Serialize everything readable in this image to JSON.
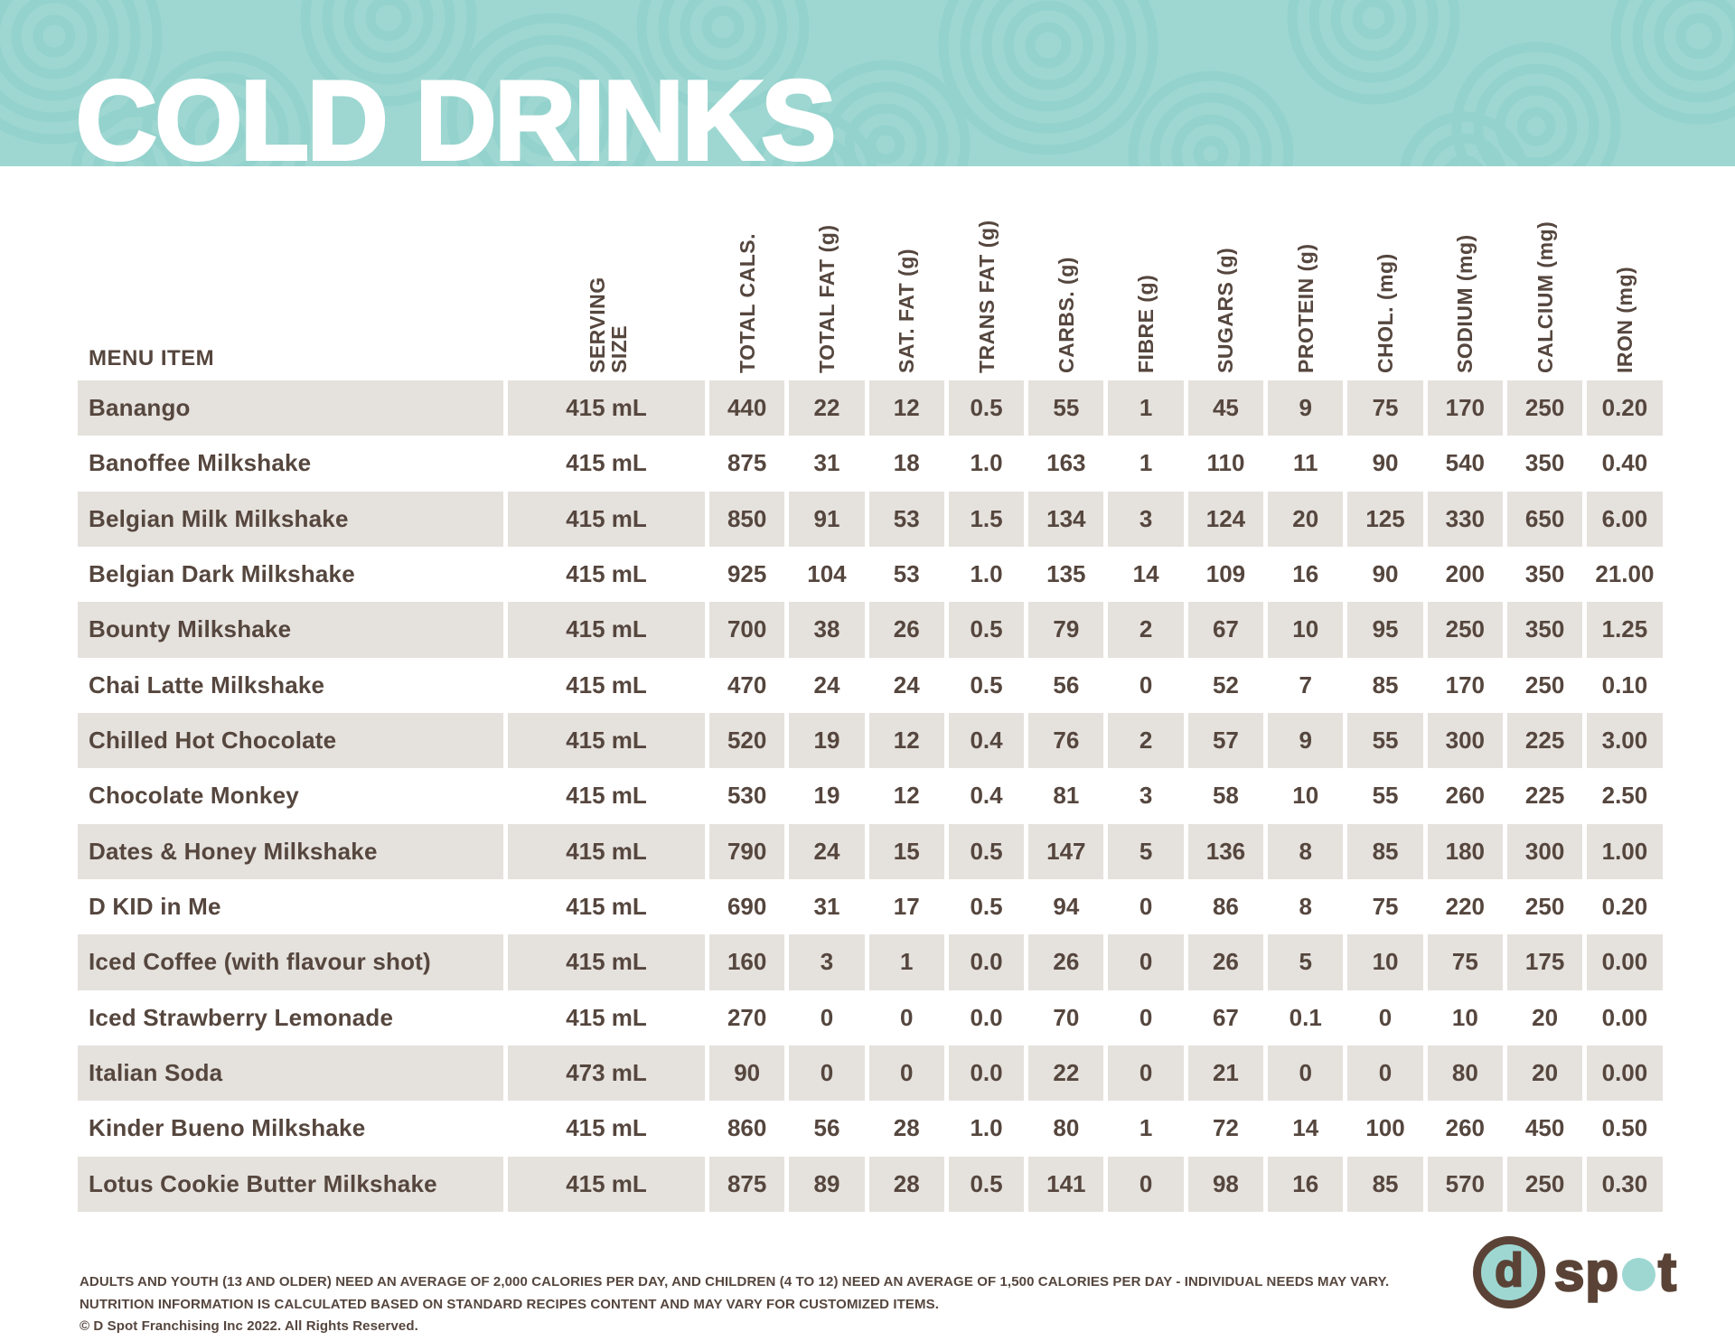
{
  "palette": {
    "teal": "#9ed7d2",
    "teal_pattern": "#8ccfc9",
    "text_brown": "#55463e",
    "logo_brown": "#5a4336",
    "row_gray": "#e5e1dd",
    "white": "#ffffff"
  },
  "header": {
    "title": "COLD DRINKS"
  },
  "table": {
    "menu_item_header": "MENU ITEM",
    "columns": [
      {
        "id": "serving-size",
        "label": "SERVING SIZE",
        "lines": [
          "SERVING",
          "SIZE"
        ]
      },
      {
        "id": "total-cals",
        "label": "TOTAL CALS.",
        "lines": [
          "TOTAL CALS."
        ]
      },
      {
        "id": "total-fat",
        "label": "TOTAL FAT (g)",
        "lines": [
          "TOTAL FAT (g)"
        ]
      },
      {
        "id": "sat-fat",
        "label": "SAT. FAT (g)",
        "lines": [
          "SAT. FAT (g)"
        ]
      },
      {
        "id": "trans-fat",
        "label": "TRANS FAT (g)",
        "lines": [
          "TRANS FAT (g)"
        ]
      },
      {
        "id": "carbs",
        "label": "CARBS. (g)",
        "lines": [
          "CARBS. (g)"
        ]
      },
      {
        "id": "fibre",
        "label": "FIBRE (g)",
        "lines": [
          "FIBRE (g)"
        ]
      },
      {
        "id": "sugars",
        "label": "SUGARS (g)",
        "lines": [
          "SUGARS (g)"
        ]
      },
      {
        "id": "protein",
        "label": "PROTEIN (g)",
        "lines": [
          "PROTEIN (g)"
        ]
      },
      {
        "id": "chol",
        "label": "CHOL. (mg)",
        "lines": [
          "CHOL. (mg)"
        ]
      },
      {
        "id": "sodium",
        "label": "SODIUM (mg)",
        "lines": [
          "SODIUM (mg)"
        ]
      },
      {
        "id": "calcium",
        "label": "CALCIUM (mg)",
        "lines": [
          "CALCIUM (mg)"
        ]
      },
      {
        "id": "iron",
        "label": "IRON (mg)",
        "lines": [
          "IRON (mg)"
        ]
      }
    ],
    "rows": [
      {
        "name": "Banango",
        "values": [
          "415 mL",
          "440",
          "22",
          "12",
          "0.5",
          "55",
          "1",
          "45",
          "9",
          "75",
          "170",
          "250",
          "0.20"
        ]
      },
      {
        "name": "Banoffee Milkshake",
        "values": [
          "415 mL",
          "875",
          "31",
          "18",
          "1.0",
          "163",
          "1",
          "110",
          "11",
          "90",
          "540",
          "350",
          "0.40"
        ]
      },
      {
        "name": "Belgian Milk Milkshake",
        "values": [
          "415 mL",
          "850",
          "91",
          "53",
          "1.5",
          "134",
          "3",
          "124",
          "20",
          "125",
          "330",
          "650",
          "6.00"
        ]
      },
      {
        "name": "Belgian Dark Milkshake",
        "values": [
          "415 mL",
          "925",
          "104",
          "53",
          "1.0",
          "135",
          "14",
          "109",
          "16",
          "90",
          "200",
          "350",
          "21.00"
        ]
      },
      {
        "name": "Bounty Milkshake",
        "values": [
          "415 mL",
          "700",
          "38",
          "26",
          "0.5",
          "79",
          "2",
          "67",
          "10",
          "95",
          "250",
          "350",
          "1.25"
        ]
      },
      {
        "name": "Chai Latte Milkshake",
        "values": [
          "415 mL",
          "470",
          "24",
          "24",
          "0.5",
          "56",
          "0",
          "52",
          "7",
          "85",
          "170",
          "250",
          "0.10"
        ]
      },
      {
        "name": "Chilled Hot Chocolate",
        "values": [
          "415 mL",
          "520",
          "19",
          "12",
          "0.4",
          "76",
          "2",
          "57",
          "9",
          "55",
          "300",
          "225",
          "3.00"
        ]
      },
      {
        "name": "Chocolate Monkey",
        "values": [
          "415 mL",
          "530",
          "19",
          "12",
          "0.4",
          "81",
          "3",
          "58",
          "10",
          "55",
          "260",
          "225",
          "2.50"
        ]
      },
      {
        "name": "Dates & Honey Milkshake",
        "values": [
          "415 mL",
          "790",
          "24",
          "15",
          "0.5",
          "147",
          "5",
          "136",
          "8",
          "85",
          "180",
          "300",
          "1.00"
        ]
      },
      {
        "name": "D KID in Me",
        "values": [
          "415 mL",
          "690",
          "31",
          "17",
          "0.5",
          "94",
          "0",
          "86",
          "8",
          "75",
          "220",
          "250",
          "0.20"
        ]
      },
      {
        "name": "Iced Coffee (with flavour shot)",
        "values": [
          "415 mL",
          "160",
          "3",
          "1",
          "0.0",
          "26",
          "0",
          "26",
          "5",
          "10",
          "75",
          "175",
          "0.00"
        ]
      },
      {
        "name": "Iced Strawberry Lemonade",
        "values": [
          "415 mL",
          "270",
          "0",
          "0",
          "0.0",
          "70",
          "0",
          "67",
          "0.1",
          "0",
          "10",
          "20",
          "0.00"
        ]
      },
      {
        "name": "Italian Soda",
        "values": [
          "473 mL",
          "90",
          "0",
          "0",
          "0.0",
          "22",
          "0",
          "21",
          "0",
          "0",
          "80",
          "20",
          "0.00"
        ]
      },
      {
        "name": "Kinder Bueno Milkshake",
        "values": [
          "415 mL",
          "860",
          "56",
          "28",
          "1.0",
          "80",
          "1",
          "72",
          "14",
          "100",
          "260",
          "450",
          "0.50"
        ]
      },
      {
        "name": "Lotus Cookie Butter Milkshake",
        "values": [
          "415 mL",
          "875",
          "89",
          "28",
          "0.5",
          "141",
          "0",
          "98",
          "16",
          "85",
          "570",
          "250",
          "0.30"
        ]
      }
    ]
  },
  "footer": {
    "line1": "ADULTS AND YOUTH (13 AND OLDER) NEED AN AVERAGE OF 2,000 CALORIES PER DAY, AND CHILDREN (4 TO 12) NEED AN AVERAGE OF 1,500 CALORIES PER DAY - INDIVIDUAL NEEDS MAY VARY.",
    "line2": "NUTRITION INFORMATION IS CALCULATED BASED ON STANDARD RECIPES CONTENT AND MAY VARY FOR CUSTOMIZED ITEMS.",
    "line3": "© D Spot Franchising Inc 2022. All Rights Reserved."
  },
  "logo": {
    "circle_letter": "d",
    "wordmark": "spot"
  }
}
